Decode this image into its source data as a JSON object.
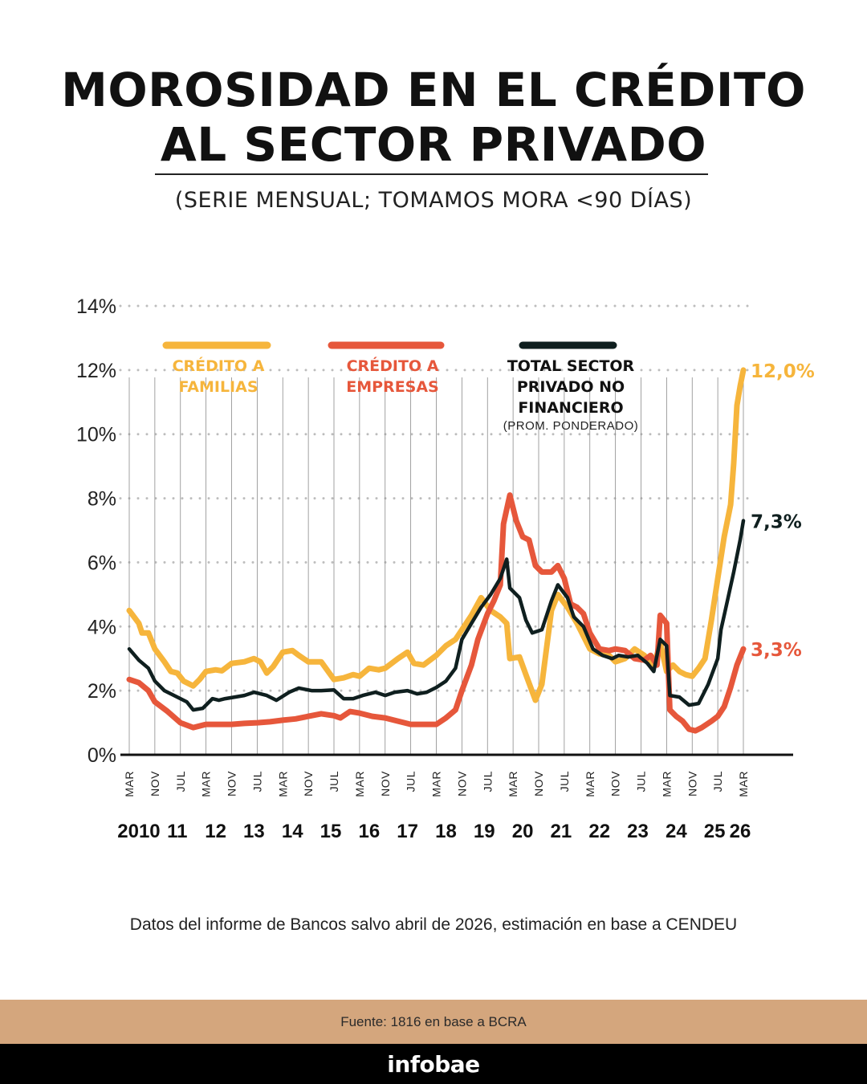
{
  "header": {
    "title_line1": "MOROSIDAD EN EL CRÉDITO",
    "title_line2": "AL SECTOR PRIVADO",
    "subtitle": "(SERIE MENSUAL; TOMAMOS MORA <90 DÍAS)"
  },
  "footer": {
    "note": "Datos del informe de Bancos salvo abril de 2026, estimación en base a CENDEU",
    "source": "Fuente: 1816 en base a BCRA",
    "brand": "infobae"
  },
  "colors": {
    "familias": "#f6b53c",
    "empresas": "#e6573b",
    "total": "#0f1f1f",
    "grid": "#bdbdbd",
    "axis": "#111111"
  },
  "chart_data": {
    "type": "line",
    "ylim": [
      0,
      14
    ],
    "y_ticks": [
      "0%",
      "2%",
      "4%",
      "6%",
      "8%",
      "10%",
      "12%",
      "14%"
    ],
    "grid": "dotted horizontal",
    "legend_placement": "top-left inside",
    "x_range": [
      "2010-03",
      "2026-03"
    ],
    "x_tick_labels": [
      {
        "label": "MAR",
        "date": "2010-03"
      },
      {
        "label": "NOV",
        "date": "2010-11"
      },
      {
        "label": "JUL",
        "date": "2011-07"
      },
      {
        "label": "MAR",
        "date": "2012-03"
      },
      {
        "label": "NOV",
        "date": "2012-11"
      },
      {
        "label": "JUL",
        "date": "2013-07"
      },
      {
        "label": "MAR",
        "date": "2014-03"
      },
      {
        "label": "NOV",
        "date": "2014-11"
      },
      {
        "label": "JUL",
        "date": "2015-07"
      },
      {
        "label": "MAR",
        "date": "2016-03"
      },
      {
        "label": "NOV",
        "date": "2016-11"
      },
      {
        "label": "JUL",
        "date": "2017-07"
      },
      {
        "label": "MAR",
        "date": "2018-03"
      },
      {
        "label": "NOV",
        "date": "2018-11"
      },
      {
        "label": "JUL",
        "date": "2019-07"
      },
      {
        "label": "MAR",
        "date": "2020-03"
      },
      {
        "label": "NOV",
        "date": "2020-11"
      },
      {
        "label": "JUL",
        "date": "2021-07"
      },
      {
        "label": "MAR",
        "date": "2022-03"
      },
      {
        "label": "NOV",
        "date": "2022-11"
      },
      {
        "label": "JUL",
        "date": "2023-07"
      },
      {
        "label": "MAR",
        "date": "2024-03"
      },
      {
        "label": "NOV",
        "date": "2024-11"
      },
      {
        "label": "JUL",
        "date": "2025-07"
      },
      {
        "label": "MAR",
        "date": "2026-03"
      }
    ],
    "year_labels": [
      {
        "label": "2010",
        "date": "2010-06"
      },
      {
        "label": "11",
        "date": "2011-06"
      },
      {
        "label": "12",
        "date": "2012-06"
      },
      {
        "label": "13",
        "date": "2013-06"
      },
      {
        "label": "14",
        "date": "2014-06"
      },
      {
        "label": "15",
        "date": "2015-06"
      },
      {
        "label": "16",
        "date": "2016-06"
      },
      {
        "label": "17",
        "date": "2017-06"
      },
      {
        "label": "18",
        "date": "2018-06"
      },
      {
        "label": "19",
        "date": "2019-06"
      },
      {
        "label": "20",
        "date": "2020-06"
      },
      {
        "label": "21",
        "date": "2021-06"
      },
      {
        "label": "22",
        "date": "2022-06"
      },
      {
        "label": "23",
        "date": "2023-06"
      },
      {
        "label": "24",
        "date": "2024-06"
      },
      {
        "label": "25",
        "date": "2025-06"
      },
      {
        "label": "26",
        "date": "2026-02"
      }
    ],
    "series": [
      {
        "key": "familias",
        "name": "CRÉDITO A FAMILIAS",
        "legend_lines": [
          "CRÉDITO A",
          "FAMILIAS"
        ],
        "end_label": "12,0%",
        "points": [
          [
            "2010-03",
            4.5
          ],
          [
            "2010-06",
            4.1
          ],
          [
            "2010-07",
            3.8
          ],
          [
            "2010-09",
            3.8
          ],
          [
            "2010-11",
            3.3
          ],
          [
            "2011-02",
            2.9
          ],
          [
            "2011-04",
            2.6
          ],
          [
            "2011-06",
            2.55
          ],
          [
            "2011-08",
            2.3
          ],
          [
            "2011-11",
            2.15
          ],
          [
            "2012-01",
            2.35
          ],
          [
            "2012-03",
            2.6
          ],
          [
            "2012-06",
            2.65
          ],
          [
            "2012-08",
            2.62
          ],
          [
            "2012-11",
            2.85
          ],
          [
            "2013-03",
            2.9
          ],
          [
            "2013-06",
            3.0
          ],
          [
            "2013-08",
            2.9
          ],
          [
            "2013-10",
            2.55
          ],
          [
            "2013-12",
            2.75
          ],
          [
            "2014-03",
            3.2
          ],
          [
            "2014-06",
            3.25
          ],
          [
            "2014-08",
            3.1
          ],
          [
            "2014-11",
            2.9
          ],
          [
            "2015-03",
            2.9
          ],
          [
            "2015-07",
            2.35
          ],
          [
            "2015-10",
            2.4
          ],
          [
            "2016-01",
            2.5
          ],
          [
            "2016-03",
            2.45
          ],
          [
            "2016-06",
            2.7
          ],
          [
            "2016-09",
            2.65
          ],
          [
            "2016-11",
            2.7
          ],
          [
            "2017-03",
            3.0
          ],
          [
            "2017-06",
            3.2
          ],
          [
            "2017-08",
            2.85
          ],
          [
            "2017-11",
            2.8
          ],
          [
            "2018-03",
            3.1
          ],
          [
            "2018-06",
            3.4
          ],
          [
            "2018-09",
            3.6
          ],
          [
            "2018-11",
            3.9
          ],
          [
            "2019-02",
            4.35
          ],
          [
            "2019-05",
            4.9
          ],
          [
            "2019-08",
            4.5
          ],
          [
            "2019-11",
            4.3
          ],
          [
            "2020-01",
            4.1
          ],
          [
            "2020-02",
            3.0
          ],
          [
            "2020-05",
            3.05
          ],
          [
            "2020-07",
            2.5
          ],
          [
            "2020-10",
            1.7
          ],
          [
            "2020-12",
            2.2
          ],
          [
            "2021-03",
            4.5
          ],
          [
            "2021-05",
            5.0
          ],
          [
            "2021-08",
            4.6
          ],
          [
            "2021-11",
            4.1
          ],
          [
            "2022-03",
            3.3
          ],
          [
            "2022-06",
            3.15
          ],
          [
            "2022-09",
            3.1
          ],
          [
            "2022-11",
            2.9
          ],
          [
            "2023-02",
            3.0
          ],
          [
            "2023-05",
            3.3
          ],
          [
            "2023-08",
            3.1
          ],
          [
            "2023-11",
            2.75
          ],
          [
            "2024-01",
            3.5
          ],
          [
            "2024-03",
            2.6
          ],
          [
            "2024-05",
            2.8
          ],
          [
            "2024-07",
            2.6
          ],
          [
            "2024-09",
            2.5
          ],
          [
            "2024-11",
            2.45
          ],
          [
            "2025-01",
            2.7
          ],
          [
            "2025-03",
            3.0
          ],
          [
            "2025-05",
            4.2
          ],
          [
            "2025-07",
            5.5
          ],
          [
            "2025-09",
            6.8
          ],
          [
            "2025-11",
            7.8
          ],
          [
            "2025-12",
            9.1
          ],
          [
            "2026-01",
            10.9
          ],
          [
            "2026-02",
            11.5
          ],
          [
            "2026-03",
            12.0
          ]
        ]
      },
      {
        "key": "empresas",
        "name": "CRÉDITO A EMPRESAS",
        "legend_lines": [
          "CRÉDITO A",
          "EMPRESAS"
        ],
        "end_label": "3,3%",
        "points": [
          [
            "2010-03",
            2.35
          ],
          [
            "2010-06",
            2.25
          ],
          [
            "2010-09",
            2.0
          ],
          [
            "2010-11",
            1.65
          ],
          [
            "2011-03",
            1.35
          ],
          [
            "2011-07",
            1.0
          ],
          [
            "2011-11",
            0.85
          ],
          [
            "2012-03",
            0.95
          ],
          [
            "2012-07",
            0.95
          ],
          [
            "2012-11",
            0.95
          ],
          [
            "2013-03",
            0.98
          ],
          [
            "2013-07",
            1.0
          ],
          [
            "2013-11",
            1.03
          ],
          [
            "2014-03",
            1.08
          ],
          [
            "2014-07",
            1.12
          ],
          [
            "2014-11",
            1.2
          ],
          [
            "2015-03",
            1.28
          ],
          [
            "2015-07",
            1.22
          ],
          [
            "2015-09",
            1.15
          ],
          [
            "2015-12",
            1.35
          ],
          [
            "2016-03",
            1.3
          ],
          [
            "2016-07",
            1.2
          ],
          [
            "2016-11",
            1.15
          ],
          [
            "2017-03",
            1.05
          ],
          [
            "2017-07",
            0.95
          ],
          [
            "2017-11",
            0.95
          ],
          [
            "2018-03",
            0.95
          ],
          [
            "2018-06",
            1.15
          ],
          [
            "2018-09",
            1.4
          ],
          [
            "2018-11",
            2.0
          ],
          [
            "2019-02",
            2.8
          ],
          [
            "2019-04",
            3.6
          ],
          [
            "2019-07",
            4.4
          ],
          [
            "2019-09",
            4.8
          ],
          [
            "2019-11",
            5.3
          ],
          [
            "2019-12",
            7.2
          ],
          [
            "2020-02",
            8.1
          ],
          [
            "2020-04",
            7.3
          ],
          [
            "2020-06",
            6.8
          ],
          [
            "2020-08",
            6.7
          ],
          [
            "2020-10",
            5.9
          ],
          [
            "2020-12",
            5.7
          ],
          [
            "2021-03",
            5.7
          ],
          [
            "2021-05",
            5.9
          ],
          [
            "2021-07",
            5.5
          ],
          [
            "2021-09",
            4.7
          ],
          [
            "2021-11",
            4.6
          ],
          [
            "2022-01",
            4.4
          ],
          [
            "2022-03",
            3.8
          ],
          [
            "2022-06",
            3.3
          ],
          [
            "2022-09",
            3.25
          ],
          [
            "2022-11",
            3.3
          ],
          [
            "2023-02",
            3.25
          ],
          [
            "2023-05",
            3.0
          ],
          [
            "2023-08",
            2.95
          ],
          [
            "2023-10",
            3.1
          ],
          [
            "2023-12",
            2.8
          ],
          [
            "2024-01",
            4.35
          ],
          [
            "2024-03",
            4.1
          ],
          [
            "2024-04",
            1.4
          ],
          [
            "2024-06",
            1.2
          ],
          [
            "2024-08",
            1.05
          ],
          [
            "2024-10",
            0.8
          ],
          [
            "2024-12",
            0.75
          ],
          [
            "2025-02",
            0.85
          ],
          [
            "2025-05",
            1.05
          ],
          [
            "2025-07",
            1.2
          ],
          [
            "2025-09",
            1.5
          ],
          [
            "2025-11",
            2.1
          ],
          [
            "2026-01",
            2.8
          ],
          [
            "2026-03",
            3.3
          ]
        ]
      },
      {
        "key": "total",
        "name": "TOTAL SECTOR PRIVADO NO FINANCIERO",
        "legend_lines": [
          "TOTAL SECTOR",
          "PRIVADO NO",
          "FINANCIERO"
        ],
        "legend_note": "(PROM. PONDERADO)",
        "end_label": "7,3%",
        "points": [
          [
            "2010-03",
            3.3
          ],
          [
            "2010-06",
            2.95
          ],
          [
            "2010-09",
            2.7
          ],
          [
            "2010-11",
            2.3
          ],
          [
            "2011-02",
            2.0
          ],
          [
            "2011-06",
            1.8
          ],
          [
            "2011-09",
            1.65
          ],
          [
            "2011-11",
            1.4
          ],
          [
            "2012-02",
            1.45
          ],
          [
            "2012-05",
            1.75
          ],
          [
            "2012-07",
            1.7
          ],
          [
            "2012-09",
            1.75
          ],
          [
            "2012-12",
            1.8
          ],
          [
            "2013-03",
            1.85
          ],
          [
            "2013-06",
            1.95
          ],
          [
            "2013-10",
            1.85
          ],
          [
            "2014-01",
            1.7
          ],
          [
            "2014-05",
            1.95
          ],
          [
            "2014-08",
            2.08
          ],
          [
            "2014-12",
            2.0
          ],
          [
            "2015-03",
            2.0
          ],
          [
            "2015-07",
            2.02
          ],
          [
            "2015-10",
            1.75
          ],
          [
            "2016-01",
            1.75
          ],
          [
            "2016-04",
            1.85
          ],
          [
            "2016-08",
            1.95
          ],
          [
            "2016-11",
            1.85
          ],
          [
            "2017-02",
            1.95
          ],
          [
            "2017-06",
            2.0
          ],
          [
            "2017-09",
            1.9
          ],
          [
            "2017-12",
            1.95
          ],
          [
            "2018-03",
            2.1
          ],
          [
            "2018-06",
            2.3
          ],
          [
            "2018-09",
            2.7
          ],
          [
            "2018-11",
            3.6
          ],
          [
            "2019-02",
            4.1
          ],
          [
            "2019-05",
            4.6
          ],
          [
            "2019-08",
            5.0
          ],
          [
            "2019-11",
            5.5
          ],
          [
            "2020-01",
            6.1
          ],
          [
            "2020-02",
            5.2
          ],
          [
            "2020-05",
            4.9
          ],
          [
            "2020-07",
            4.2
          ],
          [
            "2020-09",
            3.8
          ],
          [
            "2020-12",
            3.9
          ],
          [
            "2021-03",
            4.8
          ],
          [
            "2021-05",
            5.3
          ],
          [
            "2021-08",
            4.9
          ],
          [
            "2021-10",
            4.3
          ],
          [
            "2022-01",
            4.0
          ],
          [
            "2022-04",
            3.3
          ],
          [
            "2022-07",
            3.1
          ],
          [
            "2022-10",
            3.0
          ],
          [
            "2022-12",
            3.1
          ],
          [
            "2023-03",
            3.05
          ],
          [
            "2023-06",
            3.1
          ],
          [
            "2023-09",
            2.85
          ],
          [
            "2023-11",
            2.6
          ],
          [
            "2024-01",
            3.6
          ],
          [
            "2024-03",
            3.4
          ],
          [
            "2024-04",
            1.85
          ],
          [
            "2024-07",
            1.8
          ],
          [
            "2024-10",
            1.55
          ],
          [
            "2025-01",
            1.6
          ],
          [
            "2025-04",
            2.2
          ],
          [
            "2025-07",
            3.0
          ],
          [
            "2025-08",
            3.9
          ],
          [
            "2025-10",
            4.8
          ],
          [
            "2025-12",
            5.7
          ],
          [
            "2026-02",
            6.7
          ],
          [
            "2026-03",
            7.3
          ]
        ]
      }
    ]
  }
}
